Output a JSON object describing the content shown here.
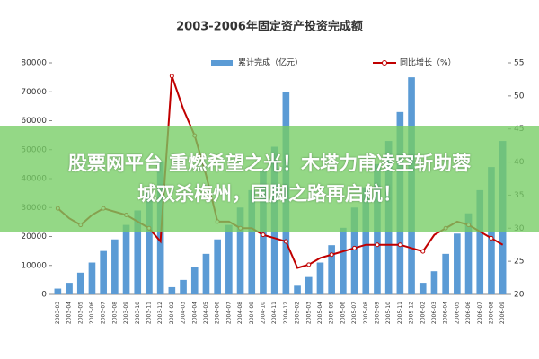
{
  "chart_data": {
    "type": "bar_line",
    "title": "2003-2006年固定资产投资完成额",
    "categories": [
      "2003-03",
      "2003-04",
      "2003-05",
      "2003-06",
      "2003-07",
      "2003-08",
      "2003-09",
      "2003-10",
      "2003-11",
      "2003-12",
      "2004-02",
      "2004-03",
      "2004-04",
      "2004-05",
      "2004-06",
      "2004-07",
      "2004-08",
      "2004-09",
      "2004-10",
      "2004-11",
      "2004-12",
      "2005-02",
      "2005-03",
      "2005-04",
      "2005-05",
      "2005-06",
      "2005-07",
      "2005-08",
      "2005-09",
      "2005-10",
      "2005-11",
      "2005-12",
      "2006-02",
      "2006-03",
      "2006-04",
      "2006-05",
      "2006-06",
      "2006-07",
      "2006-08",
      "2006-09"
    ],
    "series": [
      {
        "name": "累计完成（亿元）",
        "color": "#5b9bd5",
        "axis": "y",
        "values": [
          2000,
          4000,
          7500,
          11000,
          15000,
          19000,
          24000,
          29000,
          35000,
          46000,
          2500,
          5000,
          9500,
          14000,
          19000,
          24000,
          30000,
          36000,
          43000,
          51000,
          70000,
          3000,
          6000,
          11000,
          17000,
          23000,
          30000,
          37000,
          45000,
          53000,
          63000,
          75000,
          4000,
          8000,
          14000,
          21000,
          28000,
          36000,
          44000,
          53000
        ]
      },
      {
        "name": "同比增长（%）",
        "color": "#c00000",
        "axis": "y2",
        "values": [
          33,
          31.5,
          30.5,
          32,
          33,
          32.5,
          32,
          31,
          30,
          28,
          53,
          48,
          44,
          38,
          31,
          31,
          30,
          30,
          29,
          28.5,
          28,
          24,
          24.5,
          25.5,
          26,
          26.5,
          27,
          27.5,
          27.5,
          27.5,
          27.5,
          27,
          26.5,
          29,
          30,
          31,
          30.5,
          29.5,
          28.5,
          27.5
        ]
      }
    ],
    "ylim": [
      0,
      80000
    ],
    "yticks": [
      0,
      10000,
      20000,
      30000,
      40000,
      50000,
      60000,
      70000,
      80000
    ],
    "y2lim": [
      20,
      55
    ],
    "y2ticks": [
      20,
      25,
      30,
      35,
      40,
      45,
      50,
      55
    ]
  },
  "banner": {
    "lines": [
      "股票网平台 重燃希望之光！木塔力甫凌空斩助蓉",
      "城双杀梅州，国脚之路再启航！"
    ]
  }
}
